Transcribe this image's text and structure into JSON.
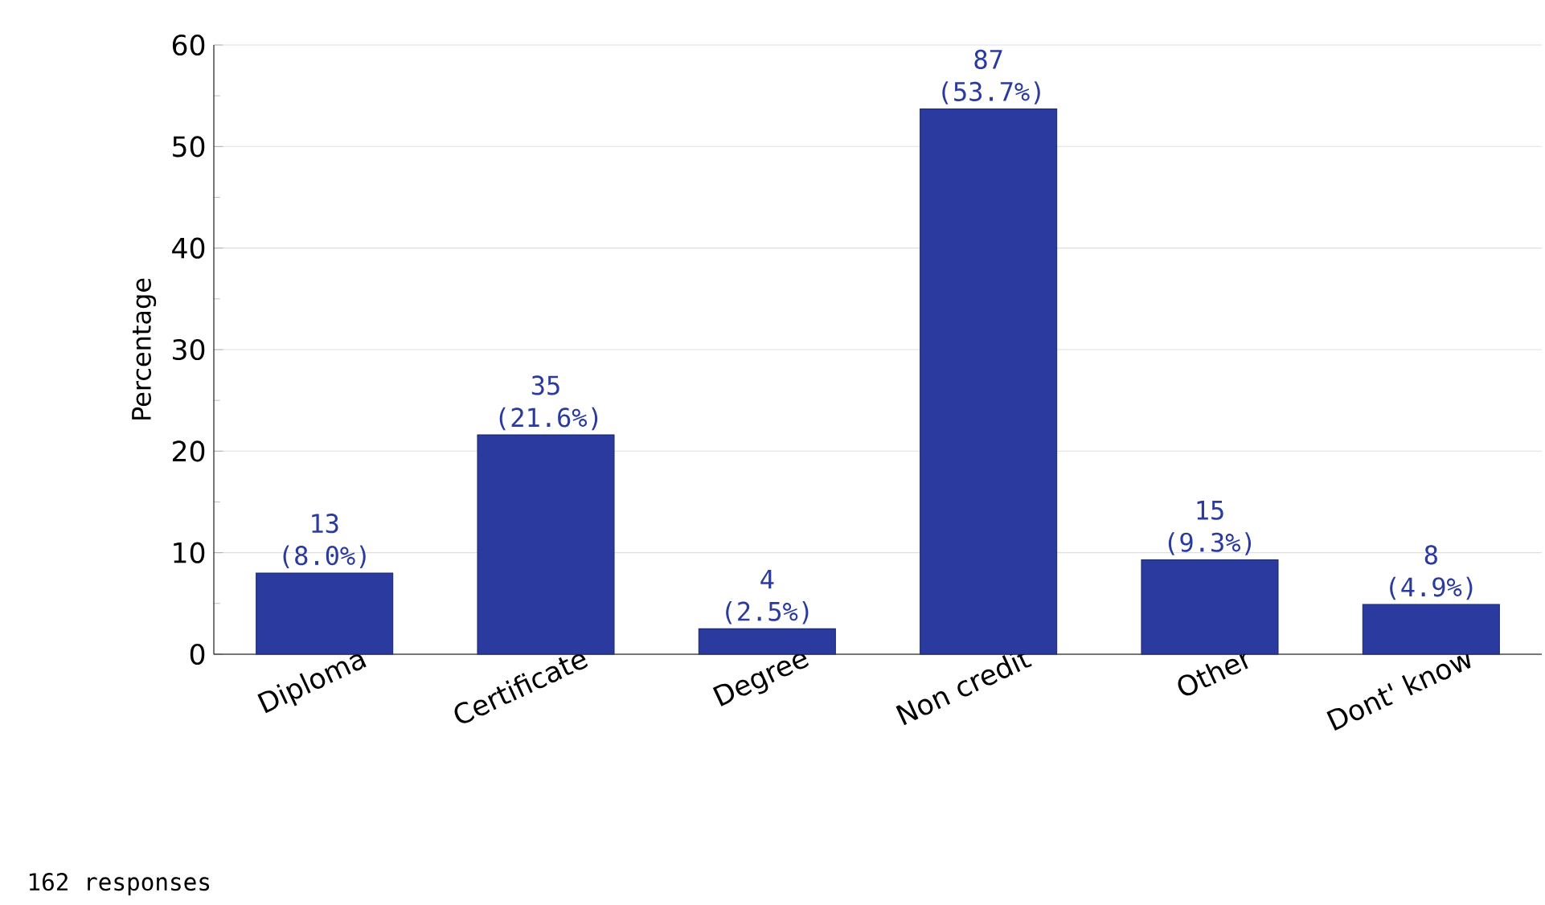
{
  "chart_data": {
    "type": "bar",
    "ylabel": "Percentage",
    "categories": [
      "Diploma",
      "Certificate",
      "Degree",
      "Non credit",
      "Other",
      "Dont' know"
    ],
    "values": [
      8.0,
      21.6,
      2.5,
      53.7,
      9.3,
      4.9
    ],
    "value_labels": [
      "13 (8.0%)",
      "35 (21.6%)",
      "4 (2.5%)",
      "87 (53.7%)",
      "15 (9.3%)",
      "8 (4.9%)"
    ],
    "color": "#2a3a9e",
    "ylim": [
      0,
      60
    ],
    "yticks": [
      0,
      10,
      20,
      30,
      40,
      50,
      60
    ],
    "grid": "y",
    "annotations": [
      "162 responses"
    ]
  }
}
